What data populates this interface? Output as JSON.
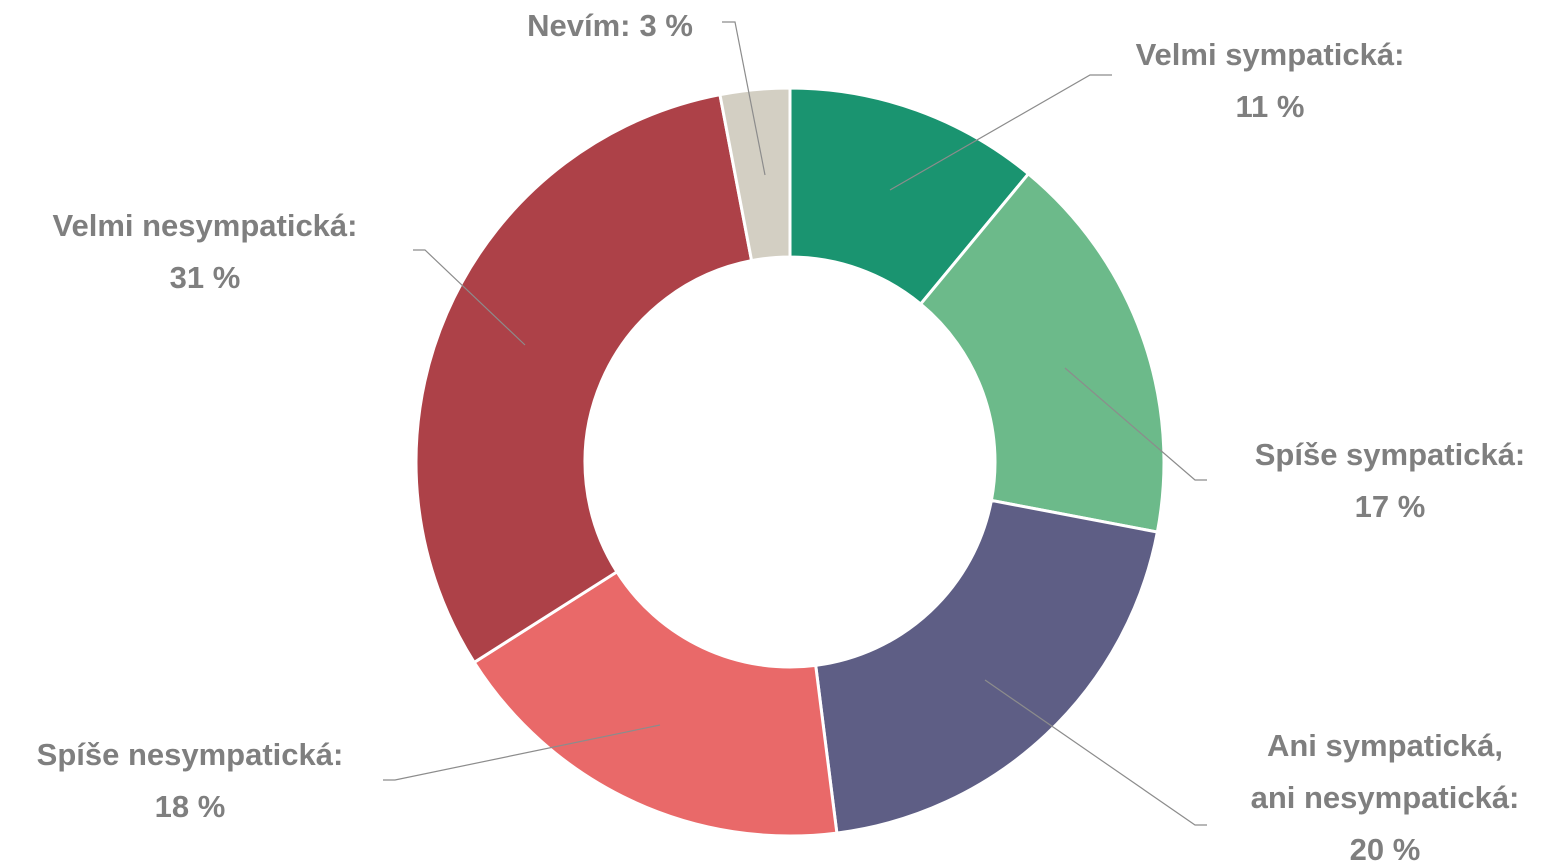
{
  "chart_data": {
    "type": "donut",
    "categories": [
      "Velmi sympatická:",
      "Spíše sympatická:",
      "Ani sympatická, ani nesympatická:",
      "Spíše nesympatická:",
      "Velmi nesympatická:",
      "Nevím:"
    ],
    "values": [
      11,
      17,
      20,
      18,
      31,
      3
    ],
    "value_labels": [
      "11 %",
      "17 %",
      "20 %",
      "18 %",
      "31 %",
      "3 %"
    ],
    "colors": [
      "#1a9470",
      "#6cba8a",
      "#5e5e85",
      "#e96969",
      "#ad4148",
      "#d3cfc3"
    ]
  }
}
